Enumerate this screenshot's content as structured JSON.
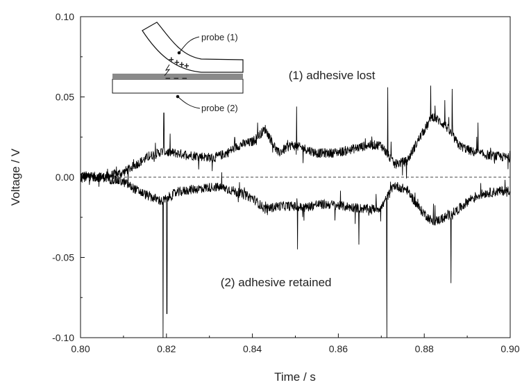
{
  "chart_data": {
    "type": "line",
    "title": "",
    "xlabel": "Time / s",
    "ylabel": "Voltage / V",
    "xlim": [
      0.8,
      0.9
    ],
    "ylim": [
      -0.1,
      0.1
    ],
    "x_ticks": [
      "0.80",
      "0.82",
      "0.84",
      "0.86",
      "0.88",
      "0.90"
    ],
    "y_ticks": [
      "-0.10",
      "-0.05",
      "0.00",
      "0.05",
      "0.10"
    ],
    "grid": false,
    "legend": "none",
    "zero_line": {
      "y": 0.0,
      "style": "dashed"
    },
    "series": [
      {
        "name": "(1) adhesive lost",
        "color": "#000000",
        "x": [
          0.8,
          0.805,
          0.81,
          0.813,
          0.816,
          0.819,
          0.822,
          0.825,
          0.828,
          0.831,
          0.834,
          0.837,
          0.84,
          0.843,
          0.846,
          0.849,
          0.852,
          0.855,
          0.858,
          0.861,
          0.864,
          0.867,
          0.87,
          0.873,
          0.876,
          0.879,
          0.882,
          0.885,
          0.888,
          0.891,
          0.894,
          0.897,
          0.9
        ],
        "values": [
          0.001,
          0.0,
          0.003,
          0.008,
          0.013,
          0.016,
          0.015,
          0.014,
          0.013,
          0.012,
          0.015,
          0.02,
          0.022,
          0.03,
          0.015,
          0.02,
          0.018,
          0.015,
          0.015,
          0.016,
          0.018,
          0.02,
          0.02,
          0.008,
          0.01,
          0.025,
          0.038,
          0.032,
          0.02,
          0.016,
          0.014,
          0.013,
          0.012
        ],
        "spikes": [
          {
            "x": 0.8194,
            "y": 0.04
          },
          {
            "x": 0.8412,
            "y": 0.034
          },
          {
            "x": 0.8503,
            "y": 0.044
          },
          {
            "x": 0.8715,
            "y": 0.056
          },
          {
            "x": 0.8815,
            "y": 0.057
          },
          {
            "x": 0.8848,
            "y": 0.048
          },
          {
            "x": 0.8865,
            "y": 0.055
          },
          {
            "x": 0.8925,
            "y": 0.034
          }
        ]
      },
      {
        "name": "(2) adhesive retained",
        "color": "#000000",
        "x": [
          0.8,
          0.805,
          0.81,
          0.813,
          0.816,
          0.819,
          0.822,
          0.825,
          0.828,
          0.831,
          0.834,
          0.837,
          0.84,
          0.843,
          0.846,
          0.849,
          0.852,
          0.855,
          0.858,
          0.861,
          0.864,
          0.867,
          0.87,
          0.873,
          0.876,
          0.879,
          0.882,
          0.885,
          0.888,
          0.891,
          0.894,
          0.897,
          0.9
        ],
        "values": [
          0.0,
          0.0,
          -0.003,
          -0.008,
          -0.012,
          -0.015,
          -0.01,
          -0.008,
          -0.007,
          -0.006,
          -0.007,
          -0.01,
          -0.013,
          -0.02,
          -0.018,
          -0.018,
          -0.019,
          -0.017,
          -0.017,
          -0.018,
          -0.019,
          -0.02,
          -0.019,
          -0.005,
          -0.008,
          -0.02,
          -0.028,
          -0.025,
          -0.02,
          -0.013,
          -0.01,
          -0.009,
          -0.008
        ],
        "spikes": [
          {
            "x": 0.8192,
            "y": -0.1
          },
          {
            "x": 0.8201,
            "y": -0.085
          },
          {
            "x": 0.8505,
            "y": -0.045
          },
          {
            "x": 0.8713,
            "y": -0.1
          },
          {
            "x": 0.8862,
            "y": -0.066
          },
          {
            "x": 0.8648,
            "y": -0.042
          }
        ]
      }
    ],
    "annotations": [
      {
        "text": "(1) adhesive lost",
        "x": 0.8585,
        "y": 0.061
      },
      {
        "text": "(2) adhesive retained",
        "x": 0.8455,
        "y": -0.068
      }
    ],
    "inset": {
      "labels": [
        "probe (1)",
        "probe (2)"
      ],
      "charges_top": [
        "+",
        "+",
        "+",
        "+"
      ],
      "charges_bottom": [
        "−",
        "−",
        "−"
      ]
    }
  }
}
